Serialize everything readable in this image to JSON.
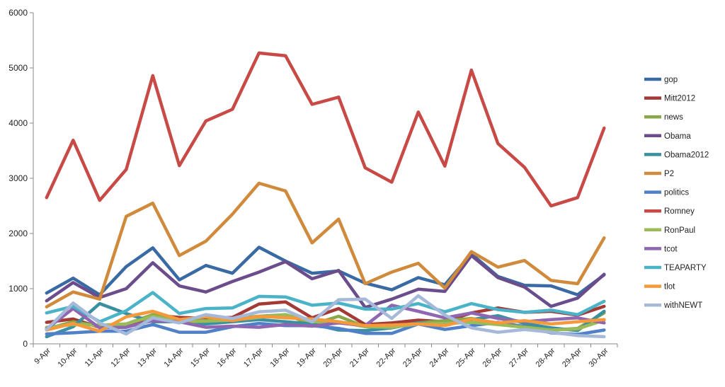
{
  "chart_data": {
    "type": "line",
    "title": "",
    "xlabel": "",
    "ylabel": "",
    "ylim": [
      0,
      6000
    ],
    "yticks": [
      0,
      1000,
      2000,
      3000,
      4000,
      5000,
      6000
    ],
    "ytick_labels": [
      "0",
      "1000",
      "2000",
      "3000",
      "4000",
      "5000",
      "6000"
    ],
    "grid": false,
    "legend_position": "right",
    "categories": [
      "9-Apr",
      "10-Apr",
      "11-Apr",
      "12-Apr",
      "13-Apr",
      "14-Apr",
      "15-Apr",
      "16-Apr",
      "17-Apr",
      "18-Apr",
      "19-Apr",
      "20-Apr",
      "21-Apr",
      "22-Apr",
      "23-Apr",
      "24-Apr",
      "25-Apr",
      "26-Apr",
      "27-Apr",
      "28-Apr",
      "29-Apr",
      "30-Apr"
    ],
    "series": [
      {
        "name": "gop",
        "color": "#3a6aa3",
        "values": [
          920,
          1190,
          890,
          1400,
          1740,
          1160,
          1420,
          1280,
          1750,
          1500,
          1280,
          1320,
          1100,
          980,
          1200,
          1070,
          1630,
          1220,
          1060,
          1050,
          890,
          1250
        ]
      },
      {
        "name": "Mitt2012",
        "color": "#a33a36",
        "values": [
          390,
          450,
          300,
          300,
          520,
          480,
          460,
          480,
          720,
          760,
          470,
          640,
          350,
          380,
          430,
          400,
          560,
          650,
          570,
          590,
          520,
          680
        ]
      },
      {
        "name": "news",
        "color": "#88a84a",
        "values": [
          270,
          400,
          320,
          360,
          530,
          430,
          420,
          460,
          500,
          530,
          350,
          500,
          310,
          300,
          380,
          420,
          460,
          370,
          320,
          250,
          280,
          560
        ]
      },
      {
        "name": "Obama",
        "color": "#6b4d8c",
        "values": [
          780,
          1110,
          840,
          1000,
          1470,
          1050,
          940,
          1130,
          1300,
          1490,
          1180,
          1330,
          660,
          810,
          990,
          950,
          1600,
          1200,
          1030,
          680,
          830,
          1260
        ]
      },
      {
        "name": "Obama2012",
        "color": "#3a8fa0",
        "values": [
          130,
          310,
          730,
          550,
          400,
          400,
          360,
          400,
          440,
          400,
          360,
          250,
          240,
          290,
          380,
          350,
          440,
          510,
          370,
          290,
          240,
          590
        ]
      },
      {
        "name": "P2",
        "color": "#d08a3c",
        "values": [
          670,
          940,
          810,
          2310,
          2550,
          1600,
          1860,
          2350,
          2910,
          2770,
          1830,
          2260,
          1090,
          1300,
          1460,
          1010,
          1670,
          1390,
          1510,
          1150,
          1090,
          1920
        ]
      },
      {
        "name": "politics",
        "color": "#4f80c8",
        "values": [
          180,
          200,
          230,
          230,
          350,
          210,
          210,
          310,
          370,
          330,
          330,
          280,
          190,
          190,
          360,
          260,
          330,
          390,
          310,
          200,
          170,
          250
        ]
      },
      {
        "name": "Romney",
        "color": "#c84a46",
        "values": [
          2650,
          3690,
          2600,
          3160,
          4860,
          3230,
          4040,
          4250,
          5270,
          5220,
          4340,
          4470,
          3190,
          2930,
          4200,
          3220,
          4960,
          3630,
          3200,
          2500,
          2650,
          3910
        ]
      },
      {
        "name": "RonPaul",
        "color": "#9bbb59",
        "values": [
          300,
          350,
          340,
          360,
          500,
          400,
          410,
          430,
          480,
          530,
          400,
          400,
          310,
          300,
          360,
          370,
          390,
          350,
          300,
          250,
          270,
          430
        ]
      },
      {
        "name": "tcot",
        "color": "#8e67b0",
        "values": [
          270,
          640,
          290,
          300,
          420,
          400,
          300,
          320,
          300,
          350,
          320,
          380,
          330,
          700,
          590,
          470,
          560,
          460,
          400,
          440,
          470,
          380
        ]
      },
      {
        "name": "TEAPARTY",
        "color": "#4bb3c8",
        "values": [
          560,
          680,
          400,
          600,
          930,
          550,
          640,
          650,
          860,
          850,
          700,
          740,
          630,
          630,
          730,
          580,
          730,
          620,
          570,
          610,
          530,
          770
        ]
      },
      {
        "name": "tlot",
        "color": "#f59a3c",
        "values": [
          250,
          370,
          230,
          490,
          590,
          440,
          490,
          420,
          500,
          470,
          450,
          400,
          330,
          340,
          360,
          330,
          450,
          380,
          420,
          360,
          400,
          440
        ]
      },
      {
        "name": "withNEWT",
        "color": "#a6b9d9",
        "values": [
          260,
          740,
          380,
          180,
          470,
          380,
          530,
          460,
          580,
          610,
          400,
          800,
          810,
          460,
          870,
          520,
          290,
          210,
          260,
          210,
          150,
          130
        ]
      }
    ]
  }
}
